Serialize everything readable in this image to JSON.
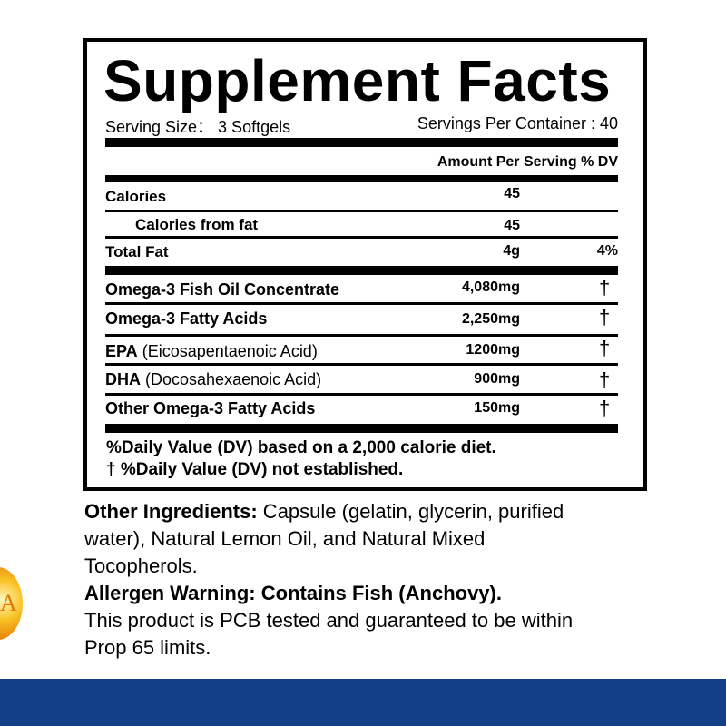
{
  "title": "Supplement Facts",
  "serving_size": "Serving Size： 3 Softgels",
  "servings_per_container": "Servings Per Container : 40",
  "header": "Amount Per Serving % DV",
  "rows": [
    {
      "label": "Calories",
      "amount": "45",
      "dv": ""
    },
    {
      "label": "Calories from fat",
      "amount": "45",
      "dv": ""
    },
    {
      "label": "Total Fat",
      "amount": "4g",
      "dv": "4%"
    },
    {
      "label": "Omega-3 Fish Oil Concentrate",
      "amount": "4,080mg",
      "dv": "†"
    },
    {
      "label": "Omega-3 Fatty Acids",
      "amount": "2,250mg",
      "dv": "†"
    },
    {
      "label": "EPA",
      "sub": "(Eicosapentaenoic Acid)",
      "amount": "1200mg",
      "dv": "†"
    },
    {
      "label": "DHA",
      "sub": "(Docosahexaenoic Acid)",
      "amount": "900mg",
      "dv": "†"
    },
    {
      "label": "Other Omega-3 Fatty Acids",
      "amount": "150mg",
      "dv": "†"
    }
  ],
  "footnote1": "%Daily Value (DV) based on a 2,000 calorie diet.",
  "footnote2": "† %Daily Value (DV) not established.",
  "other_ingredients": {
    "label": "Other Ingredients:",
    "line1": " Capsule (gelatin, glycerin, purified",
    "line2": "water), Natural Lemon Oil, and Natural Mixed",
    "line3": "Tocopherols."
  },
  "allergen": "Allergen Warning: Contains Fish (Anchovy).",
  "pcb_line1": "This product is PCB tested and guaranteed to be within",
  "pcb_line2": "Prop 65 limits.",
  "logo_text": "A",
  "colors": {
    "band": "#123e86",
    "logo": "#f9c326"
  }
}
